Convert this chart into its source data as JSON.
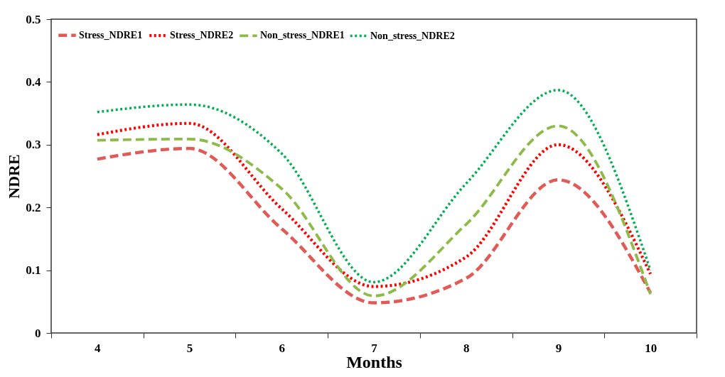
{
  "chart_data": {
    "type": "line",
    "xlabel": "Months",
    "ylabel": "NDRE",
    "categories": [
      "4",
      "5",
      "6",
      "7",
      "8",
      "9",
      "10"
    ],
    "ylim": [
      0,
      0.5
    ],
    "yticks": [
      0,
      0.1,
      0.2,
      0.3,
      0.4,
      0.5
    ],
    "grid": false,
    "legend": "top",
    "marker": "none",
    "series": [
      {
        "name": "Stress_NDRE1",
        "color": "#e05a56",
        "line_style": "dashed",
        "values": [
          0.277,
          0.294,
          0.166,
          0.048,
          0.087,
          0.244,
          0.064
        ]
      },
      {
        "name": "Stress_NDRE2",
        "color": "#ff0000",
        "line_style": "dotted",
        "values": [
          0.316,
          0.334,
          0.198,
          0.074,
          0.121,
          0.3,
          0.094
        ]
      },
      {
        "name": "Non_stress_NDRE1",
        "color": "#8dbb4a",
        "line_style": "dashed",
        "values": [
          0.307,
          0.309,
          0.23,
          0.059,
          0.173,
          0.33,
          0.062
        ]
      },
      {
        "name": "Non_stress_NDRE2",
        "color": "#00b050",
        "line_style": "dotted",
        "values": [
          0.352,
          0.364,
          0.286,
          0.081,
          0.238,
          0.387,
          0.1
        ]
      }
    ]
  }
}
